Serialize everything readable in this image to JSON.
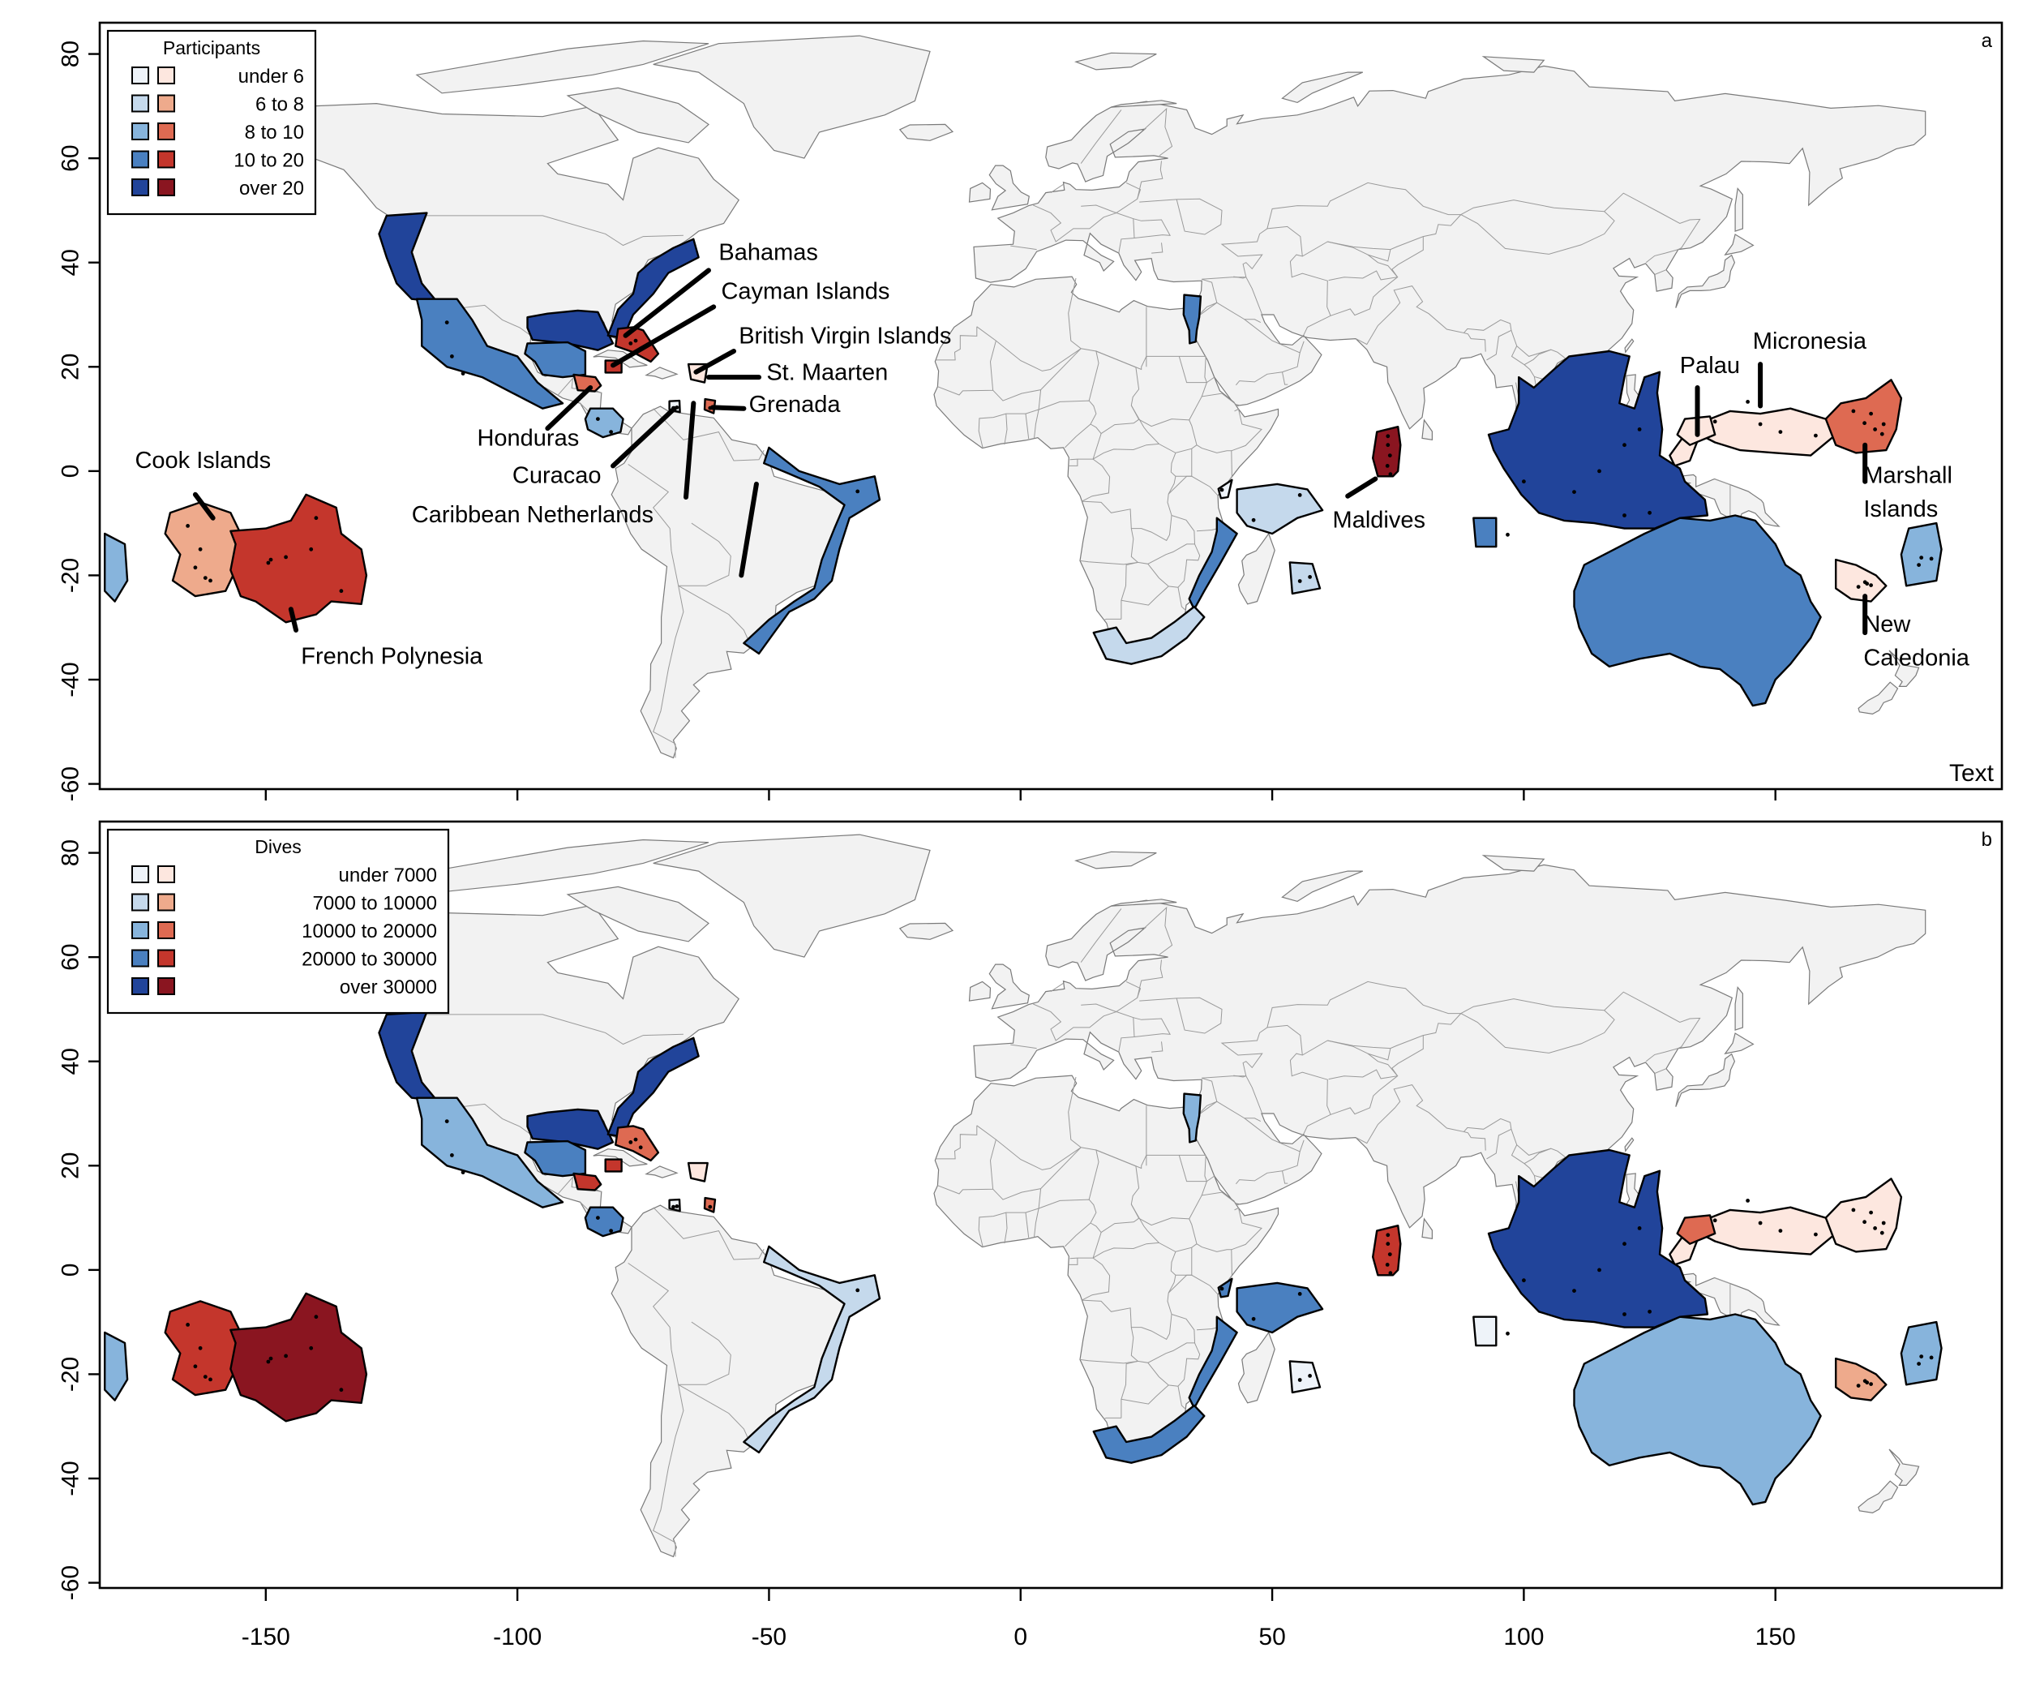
{
  "axes": {
    "x_ticks": [
      -150,
      -100,
      -50,
      0,
      50,
      100,
      150
    ],
    "y_ticks": [
      80,
      60,
      40,
      20,
      0,
      -20,
      -40,
      -60
    ],
    "xlim": [
      -183,
      195
    ],
    "ylim": [
      -61,
      86
    ]
  },
  "legend_swatch_colors": {
    "blue": [
      "#eef3f9",
      "#c5d9ec",
      "#87b4dc",
      "#4a80c0",
      "#21449a"
    ],
    "red": [
      "#fde7df",
      "#eeaa8c",
      "#de6a52",
      "#c4362c",
      "#8a1520"
    ]
  },
  "panels": [
    {
      "letter": "a",
      "corner_text": "Text",
      "legend": {
        "title": "Participants",
        "classes": [
          "under 6",
          "6 to 8",
          "8 to 10",
          "10 to 20",
          "over 20"
        ]
      },
      "labels": {
        "bahamas": "Bahamas",
        "cayman": "Cayman Islands",
        "bvi": "British Virgin Islands",
        "stmaarten": "St. Maarten",
        "grenada": "Grenada",
        "honduras": "Honduras",
        "curacao": "Curacao",
        "caribnl": "Caribbean Netherlands",
        "cook": "Cook Islands",
        "frpoly": "French Polynesia",
        "maldives": "Maldives",
        "palau": "Palau",
        "micronesia": "Micronesia",
        "marshall_1": "Marshall",
        "marshall_2": "Islands",
        "newcal_1": "New",
        "newcal_2": "Caledonia"
      },
      "regions": {
        "us_west": "#21449a",
        "baja": "#4a80c0",
        "us_east": "#21449a",
        "gulf": "#21449a",
        "yucatan": "#4a80c0",
        "bahamas": "#c4362c",
        "honduras": "#de6a52",
        "cayman": "#c4362c",
        "panama": "#87b4dc",
        "curacao": "#eef3f9",
        "bvi": "#fde7df",
        "grenada": "#de6a52",
        "brazil": "#4a80c0",
        "hawaii": "#87b4dc",
        "cook": "#eeaa8c",
        "frpoly": "#c4362c",
        "egypt": "#4a80c0",
        "kenya": "#eef3f9",
        "seychelles": "#c5d9ec",
        "mauritius": "#c5d9ec",
        "mozambique": "#4a80c0",
        "south_africa": "#c5d9ec",
        "maldives": "#8a1520",
        "andaman": "#4a80c0",
        "se_asia": "#21449a",
        "palau": "#fde7df",
        "micronesia": "#fde7df",
        "marshall": "#de6a52",
        "australia": "#4a80c0",
        "newcal": "#fde7df",
        "fiji": "#87b4dc"
      }
    },
    {
      "letter": "b",
      "legend": {
        "title": "Dives",
        "classes": [
          "under 7000",
          "7000 to 10000",
          "10000 to 20000",
          "20000 to 30000",
          "over 30000"
        ]
      },
      "regions": {
        "us_west": "#21449a",
        "baja": "#87b4dc",
        "us_east": "#21449a",
        "gulf": "#21449a",
        "yucatan": "#4a80c0",
        "bahamas": "#de6a52",
        "honduras": "#c4362c",
        "cayman": "#c4362c",
        "panama": "#4a80c0",
        "curacao": "#eef3f9",
        "bvi": "#fde7df",
        "grenada": "#de6a52",
        "brazil": "#c5d9ec",
        "hawaii": "#87b4dc",
        "cook": "#c4362c",
        "frpoly": "#8a1520",
        "egypt": "#87b4dc",
        "kenya": "#4a80c0",
        "seychelles": "#4a80c0",
        "mauritius": "#eef3f9",
        "mozambique": "#4a80c0",
        "south_africa": "#4a80c0",
        "maldives": "#c4362c",
        "andaman": "#eef3f9",
        "se_asia": "#21449a",
        "palau": "#de6a52",
        "micronesia": "#fde7df",
        "marshall": "#fde7df",
        "australia": "#87b4dc",
        "newcal": "#eeaa8c",
        "fiji": "#87b4dc"
      }
    }
  ]
}
